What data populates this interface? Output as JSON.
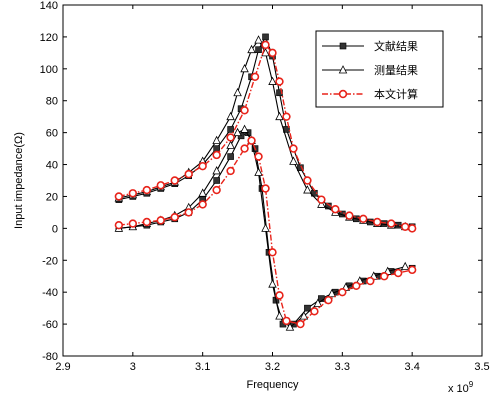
{
  "chart_data": {
    "type": "line",
    "xlabel": "Frequency",
    "ylabel": "Input impedance(Ω)",
    "x_exponent_label": "x 10",
    "x_exponent_power": "9",
    "xlim": [
      2.9,
      3.5
    ],
    "ylim": [
      -80,
      140
    ],
    "xticks": [
      "2.9",
      "3",
      "3.1",
      "3.2",
      "3.3",
      "3.4",
      "3.5"
    ],
    "yticks": [
      "-80",
      "-60",
      "-40",
      "-20",
      "0",
      "20",
      "40",
      "60",
      "80",
      "100",
      "120",
      "140"
    ],
    "grid": false,
    "legend_position": "top-right",
    "series": [
      {
        "name": "文献结果",
        "color": "#000000",
        "marker": "square",
        "line_style": "solid",
        "real": {
          "x": [
            2.98,
            3.0,
            3.02,
            3.04,
            3.06,
            3.08,
            3.1,
            3.12,
            3.14,
            3.155,
            3.17,
            3.18,
            3.19,
            3.2,
            3.21,
            3.22,
            3.24,
            3.26,
            3.28,
            3.3,
            3.32,
            3.34,
            3.36,
            3.38,
            3.4
          ],
          "y": [
            18,
            20,
            22,
            25,
            28,
            33,
            40,
            50,
            62,
            75,
            95,
            112,
            120,
            108,
            85,
            62,
            38,
            22,
            14,
            9,
            6,
            4,
            3,
            2,
            1
          ]
        },
        "imag": {
          "x": [
            2.98,
            3.0,
            3.02,
            3.04,
            3.06,
            3.08,
            3.1,
            3.12,
            3.14,
            3.155,
            3.165,
            3.175,
            3.185,
            3.195,
            3.205,
            3.215,
            3.23,
            3.25,
            3.27,
            3.29,
            3.31,
            3.33,
            3.35,
            3.37,
            3.4
          ],
          "y": [
            0,
            1,
            2,
            4,
            6,
            10,
            18,
            30,
            45,
            58,
            60,
            50,
            25,
            -15,
            -45,
            -60,
            -60,
            -50,
            -44,
            -40,
            -36,
            -33,
            -30,
            -27,
            -25
          ]
        }
      },
      {
        "name": "测量结果",
        "color": "#000000",
        "marker": "triangle",
        "line_style": "solid",
        "real": {
          "x": [
            2.98,
            3.0,
            3.02,
            3.04,
            3.06,
            3.08,
            3.1,
            3.12,
            3.14,
            3.15,
            3.16,
            3.17,
            3.18,
            3.19,
            3.2,
            3.21,
            3.23,
            3.25,
            3.27,
            3.29,
            3.31,
            3.33,
            3.35,
            3.37,
            3.39
          ],
          "y": [
            19,
            21,
            23,
            26,
            29,
            35,
            42,
            55,
            70,
            85,
            100,
            112,
            118,
            110,
            92,
            70,
            42,
            24,
            15,
            10,
            7,
            5,
            3,
            2,
            1
          ]
        },
        "imag": {
          "x": [
            2.98,
            3.0,
            3.02,
            3.04,
            3.06,
            3.08,
            3.1,
            3.12,
            3.14,
            3.15,
            3.16,
            3.17,
            3.18,
            3.19,
            3.2,
            3.21,
            3.225,
            3.245,
            3.265,
            3.285,
            3.305,
            3.325,
            3.345,
            3.365,
            3.39
          ],
          "y": [
            0,
            1,
            3,
            5,
            8,
            13,
            22,
            36,
            52,
            60,
            62,
            55,
            35,
            0,
            -35,
            -55,
            -62,
            -55,
            -47,
            -41,
            -37,
            -33,
            -30,
            -27,
            -24
          ]
        }
      },
      {
        "name": "本文计算",
        "color": "#e8231a",
        "marker": "circle",
        "line_style": "dashdot",
        "real": {
          "x": [
            2.98,
            3.0,
            3.02,
            3.04,
            3.06,
            3.08,
            3.1,
            3.12,
            3.14,
            3.16,
            3.175,
            3.19,
            3.2,
            3.21,
            3.22,
            3.23,
            3.25,
            3.27,
            3.29,
            3.31,
            3.33,
            3.35,
            3.37,
            3.39,
            3.4
          ],
          "y": [
            20,
            22,
            24,
            27,
            30,
            34,
            39,
            46,
            57,
            74,
            95,
            115,
            110,
            92,
            70,
            50,
            30,
            18,
            12,
            8,
            6,
            4,
            3,
            1,
            0
          ]
        },
        "imag": {
          "x": [
            2.98,
            3.0,
            3.02,
            3.04,
            3.06,
            3.08,
            3.1,
            3.12,
            3.14,
            3.16,
            3.17,
            3.18,
            3.19,
            3.2,
            3.21,
            3.22,
            3.24,
            3.26,
            3.28,
            3.3,
            3.32,
            3.34,
            3.36,
            3.38,
            3.4
          ],
          "y": [
            2,
            3,
            4,
            5,
            7,
            10,
            15,
            24,
            36,
            50,
            55,
            45,
            25,
            -15,
            -42,
            -58,
            -60,
            -52,
            -45,
            -40,
            -36,
            -33,
            -30,
            -28,
            -26
          ]
        }
      }
    ]
  }
}
